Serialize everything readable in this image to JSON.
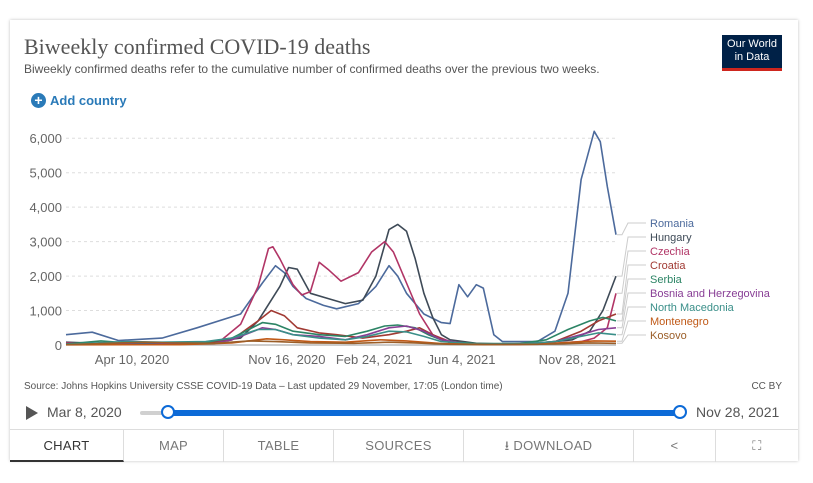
{
  "header": {
    "title": "Biweekly confirmed COVID-19 deaths",
    "subtitle": "Biweekly confirmed deaths refer to the cumulative number of confirmed deaths over the previous two weeks.",
    "logo_line1": "Our World",
    "logo_line2": "in Data"
  },
  "add_country": {
    "label": "Add country"
  },
  "chart_data": {
    "type": "line",
    "title": "Biweekly confirmed COVID-19 deaths",
    "ylim": [
      0,
      6500
    ],
    "yticks": [
      0,
      1000,
      2000,
      3000,
      4000,
      5000,
      6000
    ],
    "ytick_labels": [
      "0",
      "1,000",
      "2,000",
      "3,000",
      "4,000",
      "5,000",
      "6,000"
    ],
    "xlim": [
      0,
      630
    ],
    "xticks": [
      {
        "t": 33,
        "label": "Apr 10, 2020"
      },
      {
        "t": 253,
        "label": "Nov 16, 2020"
      },
      {
        "t": 353,
        "label": "Feb 24, 2021"
      },
      {
        "t": 453,
        "label": "Jun 4, 2021"
      },
      {
        "t": 630,
        "label": "Nov 28, 2021"
      }
    ],
    "series": [
      {
        "name": "Romania",
        "color": "#4c6a9c",
        "points": [
          [
            0,
            300
          ],
          [
            30,
            370
          ],
          [
            60,
            130
          ],
          [
            110,
            200
          ],
          [
            150,
            500
          ],
          [
            200,
            900
          ],
          [
            225,
            1800
          ],
          [
            240,
            2300
          ],
          [
            250,
            2100
          ],
          [
            260,
            1700
          ],
          [
            275,
            1350
          ],
          [
            295,
            1150
          ],
          [
            310,
            1050
          ],
          [
            335,
            1200
          ],
          [
            355,
            1700
          ],
          [
            370,
            2300
          ],
          [
            380,
            2000
          ],
          [
            390,
            1500
          ],
          [
            410,
            900
          ],
          [
            430,
            650
          ],
          [
            440,
            620
          ],
          [
            450,
            1750
          ],
          [
            460,
            1400
          ],
          [
            470,
            1750
          ],
          [
            478,
            1650
          ],
          [
            490,
            300
          ],
          [
            500,
            100
          ],
          [
            540,
            100
          ],
          [
            560,
            400
          ],
          [
            575,
            1500
          ],
          [
            590,
            4800
          ],
          [
            605,
            6200
          ],
          [
            612,
            5900
          ],
          [
            620,
            4600
          ],
          [
            630,
            3200
          ]
        ]
      },
      {
        "name": "Hungary",
        "color": "#3e4a57",
        "points": [
          [
            0,
            80
          ],
          [
            60,
            30
          ],
          [
            120,
            40
          ],
          [
            170,
            100
          ],
          [
            200,
            200
          ],
          [
            220,
            700
          ],
          [
            245,
            1700
          ],
          [
            255,
            2250
          ],
          [
            265,
            2200
          ],
          [
            280,
            1500
          ],
          [
            300,
            1350
          ],
          [
            320,
            1200
          ],
          [
            340,
            1300
          ],
          [
            355,
            2000
          ],
          [
            370,
            3350
          ],
          [
            380,
            3500
          ],
          [
            390,
            3300
          ],
          [
            400,
            2500
          ],
          [
            410,
            1500
          ],
          [
            420,
            800
          ],
          [
            430,
            300
          ],
          [
            440,
            150
          ],
          [
            470,
            50
          ],
          [
            500,
            30
          ],
          [
            540,
            50
          ],
          [
            580,
            150
          ],
          [
            600,
            400
          ],
          [
            615,
            1000
          ],
          [
            630,
            2000
          ]
        ]
      },
      {
        "name": "Czechia",
        "color": "#b13566",
        "points": [
          [
            0,
            60
          ],
          [
            60,
            30
          ],
          [
            120,
            30
          ],
          [
            175,
            80
          ],
          [
            200,
            600
          ],
          [
            220,
            1700
          ],
          [
            232,
            2800
          ],
          [
            237,
            2850
          ],
          [
            245,
            2500
          ],
          [
            260,
            1750
          ],
          [
            270,
            1450
          ],
          [
            280,
            1550
          ],
          [
            290,
            2400
          ],
          [
            300,
            2200
          ],
          [
            315,
            1850
          ],
          [
            335,
            2100
          ],
          [
            350,
            2700
          ],
          [
            365,
            3000
          ],
          [
            375,
            2700
          ],
          [
            390,
            1800
          ],
          [
            405,
            900
          ],
          [
            420,
            300
          ],
          [
            440,
            100
          ],
          [
            470,
            30
          ],
          [
            520,
            20
          ],
          [
            560,
            50
          ],
          [
            590,
            100
          ],
          [
            605,
            200
          ],
          [
            620,
            500
          ],
          [
            630,
            1500
          ]
        ]
      },
      {
        "name": "Croatia",
        "color": "#a13a33",
        "points": [
          [
            0,
            10
          ],
          [
            100,
            10
          ],
          [
            160,
            40
          ],
          [
            190,
            150
          ],
          [
            220,
            700
          ],
          [
            235,
            1000
          ],
          [
            250,
            850
          ],
          [
            265,
            500
          ],
          [
            290,
            350
          ],
          [
            310,
            300
          ],
          [
            340,
            200
          ],
          [
            370,
            300
          ],
          [
            390,
            400
          ],
          [
            405,
            500
          ],
          [
            420,
            300
          ],
          [
            440,
            60
          ],
          [
            480,
            20
          ],
          [
            520,
            20
          ],
          [
            560,
            100
          ],
          [
            590,
            400
          ],
          [
            610,
            700
          ],
          [
            630,
            900
          ]
        ]
      },
      {
        "name": "Serbia",
        "color": "#2c8465",
        "points": [
          [
            0,
            30
          ],
          [
            40,
            120
          ],
          [
            70,
            60
          ],
          [
            120,
            50
          ],
          [
            160,
            80
          ],
          [
            190,
            200
          ],
          [
            225,
            650
          ],
          [
            240,
            600
          ],
          [
            260,
            400
          ],
          [
            290,
            300
          ],
          [
            320,
            250
          ],
          [
            345,
            400
          ],
          [
            365,
            550
          ],
          [
            380,
            580
          ],
          [
            400,
            500
          ],
          [
            415,
            300
          ],
          [
            435,
            100
          ],
          [
            470,
            40
          ],
          [
            520,
            40
          ],
          [
            550,
            150
          ],
          [
            575,
            450
          ],
          [
            600,
            700
          ],
          [
            615,
            800
          ],
          [
            630,
            700
          ]
        ]
      },
      {
        "name": "Bosnia and Herzegovina",
        "color": "#883e95",
        "points": [
          [
            0,
            10
          ],
          [
            120,
            20
          ],
          [
            170,
            50
          ],
          [
            190,
            150
          ],
          [
            225,
            500
          ],
          [
            240,
            450
          ],
          [
            260,
            300
          ],
          [
            290,
            250
          ],
          [
            320,
            150
          ],
          [
            345,
            300
          ],
          [
            370,
            500
          ],
          [
            390,
            550
          ],
          [
            410,
            400
          ],
          [
            430,
            150
          ],
          [
            460,
            30
          ],
          [
            520,
            20
          ],
          [
            560,
            100
          ],
          [
            590,
            300
          ],
          [
            610,
            450
          ],
          [
            630,
            500
          ]
        ]
      },
      {
        "name": "North Macedonia",
        "color": "#3a8f89",
        "points": [
          [
            0,
            20
          ],
          [
            70,
            100
          ],
          [
            110,
            80
          ],
          [
            160,
            100
          ],
          [
            190,
            200
          ],
          [
            220,
            450
          ],
          [
            240,
            450
          ],
          [
            260,
            300
          ],
          [
            290,
            200
          ],
          [
            320,
            150
          ],
          [
            345,
            250
          ],
          [
            370,
            400
          ],
          [
            390,
            380
          ],
          [
            410,
            250
          ],
          [
            430,
            100
          ],
          [
            470,
            30
          ],
          [
            520,
            30
          ],
          [
            560,
            100
          ],
          [
            590,
            250
          ],
          [
            610,
            350
          ],
          [
            630,
            300
          ]
        ]
      },
      {
        "name": "Montenegro",
        "color": "#c05917",
        "points": [
          [
            0,
            5
          ],
          [
            130,
            10
          ],
          [
            190,
            60
          ],
          [
            230,
            180
          ],
          [
            250,
            150
          ],
          [
            280,
            100
          ],
          [
            320,
            80
          ],
          [
            360,
            150
          ],
          [
            390,
            120
          ],
          [
            430,
            40
          ],
          [
            480,
            10
          ],
          [
            540,
            20
          ],
          [
            580,
            80
          ],
          [
            605,
            120
          ],
          [
            630,
            110
          ]
        ]
      },
      {
        "name": "Kosovo",
        "color": "#9b5e28",
        "points": [
          [
            0,
            10
          ],
          [
            90,
            80
          ],
          [
            120,
            60
          ],
          [
            170,
            50
          ],
          [
            210,
            120
          ],
          [
            240,
            100
          ],
          [
            280,
            60
          ],
          [
            330,
            50
          ],
          [
            370,
            80
          ],
          [
            400,
            60
          ],
          [
            440,
            20
          ],
          [
            500,
            10
          ],
          [
            560,
            30
          ],
          [
            600,
            60
          ],
          [
            630,
            50
          ]
        ]
      }
    ]
  },
  "footer": {
    "source": "Source: Johns Hopkins University CSSE COVID-19 Data – Last updated 29 November, 17:05 (London time)",
    "license": "CC BY"
  },
  "timeline": {
    "start_label": "Mar 8, 2020",
    "end_label": "Nov 28, 2021",
    "start_fraction": 0.0,
    "end_fraction": 1.0
  },
  "tabs": {
    "chart": "CHART",
    "map": "MAP",
    "table": "TABLE",
    "sources": "SOURCES",
    "download": "DOWNLOAD",
    "share_icon": "share-icon",
    "fullscreen_icon": "fullscreen-icon"
  }
}
